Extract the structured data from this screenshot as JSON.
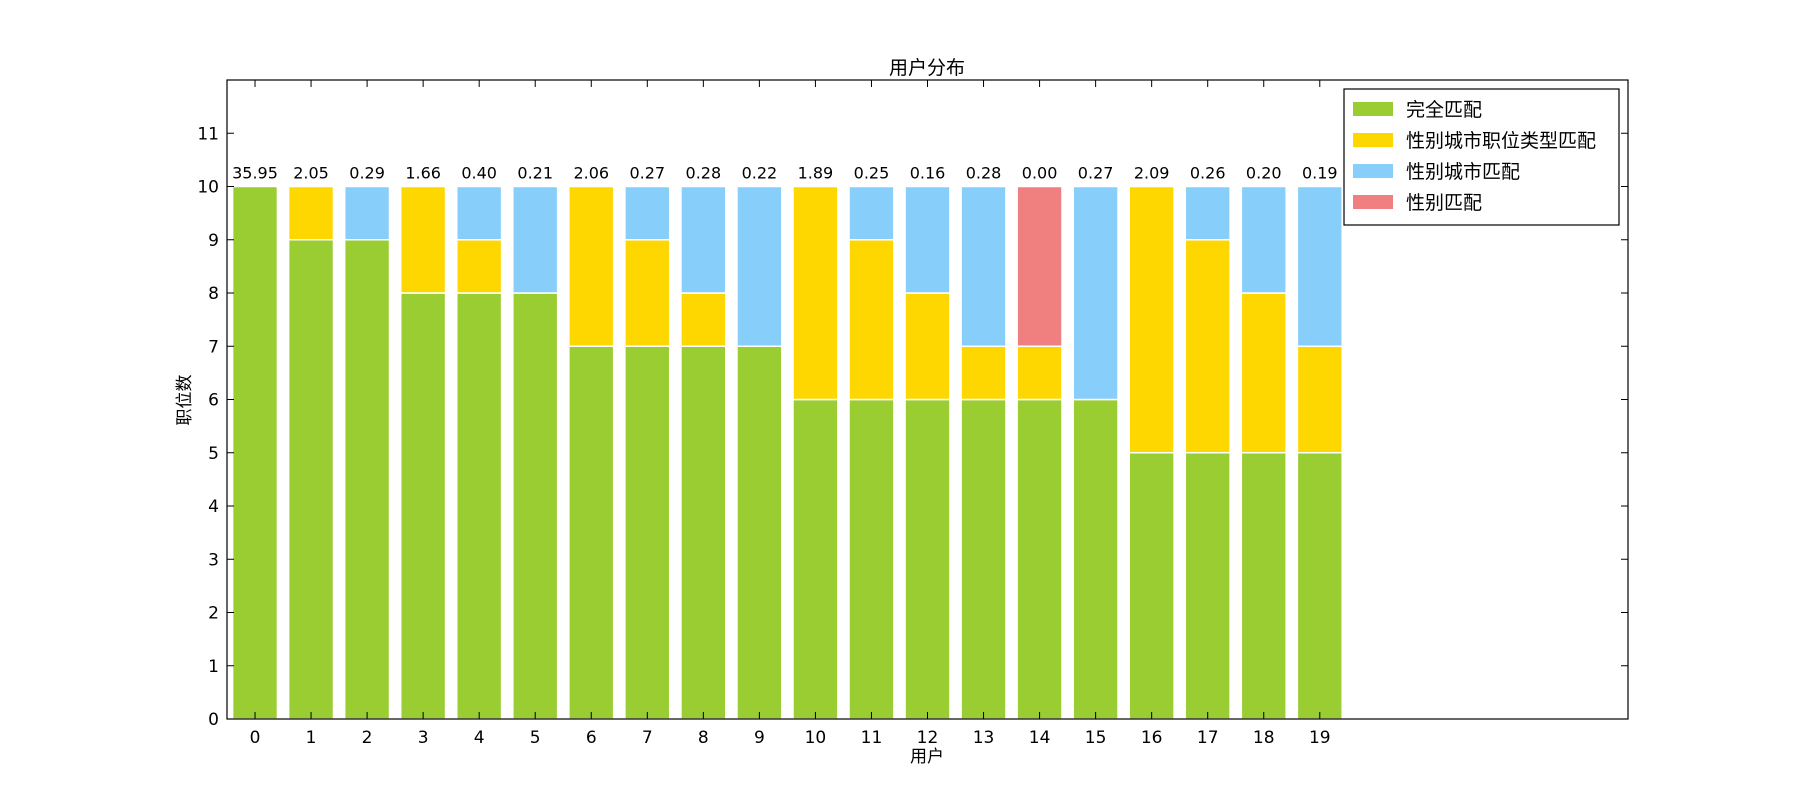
{
  "chart_data": {
    "type": "bar",
    "stacked": true,
    "title": "用户分布",
    "xlabel": "用户",
    "ylabel": "职位数",
    "categories": [
      "0",
      "1",
      "2",
      "3",
      "4",
      "5",
      "6",
      "7",
      "8",
      "9",
      "10",
      "11",
      "12",
      "13",
      "14",
      "15",
      "16",
      "17",
      "18",
      "19"
    ],
    "x_axis_range": [
      -0.5,
      24.5
    ],
    "ylim": [
      0,
      12
    ],
    "yticks": [
      0,
      1,
      2,
      3,
      4,
      5,
      6,
      7,
      8,
      9,
      10,
      11
    ],
    "grid": false,
    "legend_position": "top-right",
    "series": [
      {
        "name": "完全匹配",
        "color": "#9acd32",
        "values": [
          10,
          9,
          9,
          8,
          8,
          8,
          7,
          7,
          7,
          7,
          6,
          6,
          6,
          6,
          6,
          6,
          5,
          5,
          5,
          5
        ]
      },
      {
        "name": "性别城市职位类型匹配",
        "color": "#ffd700",
        "values": [
          0,
          1,
          0,
          2,
          1,
          0,
          3,
          2,
          1,
          0,
          4,
          3,
          2,
          1,
          1,
          0,
          5,
          4,
          3,
          2
        ]
      },
      {
        "name": "性别城市匹配",
        "color": "#87cefa",
        "values": [
          0,
          0,
          1,
          0,
          1,
          2,
          0,
          1,
          2,
          3,
          0,
          1,
          2,
          3,
          0,
          4,
          0,
          1,
          2,
          3
        ]
      },
      {
        "name": "性别匹配",
        "color": "#f08080",
        "values": [
          0,
          0,
          0,
          0,
          0,
          0,
          0,
          0,
          0,
          0,
          0,
          0,
          0,
          0,
          3,
          0,
          0,
          0,
          0,
          0
        ]
      }
    ],
    "bar_labels": [
      "35.95",
      "2.05",
      "0.29",
      "1.66",
      "0.40",
      "0.21",
      "2.06",
      "0.27",
      "0.28",
      "0.22",
      "1.89",
      "0.25",
      "0.16",
      "0.28",
      "0.00",
      "0.27",
      "2.09",
      "0.26",
      "0.20",
      "0.19"
    ]
  }
}
